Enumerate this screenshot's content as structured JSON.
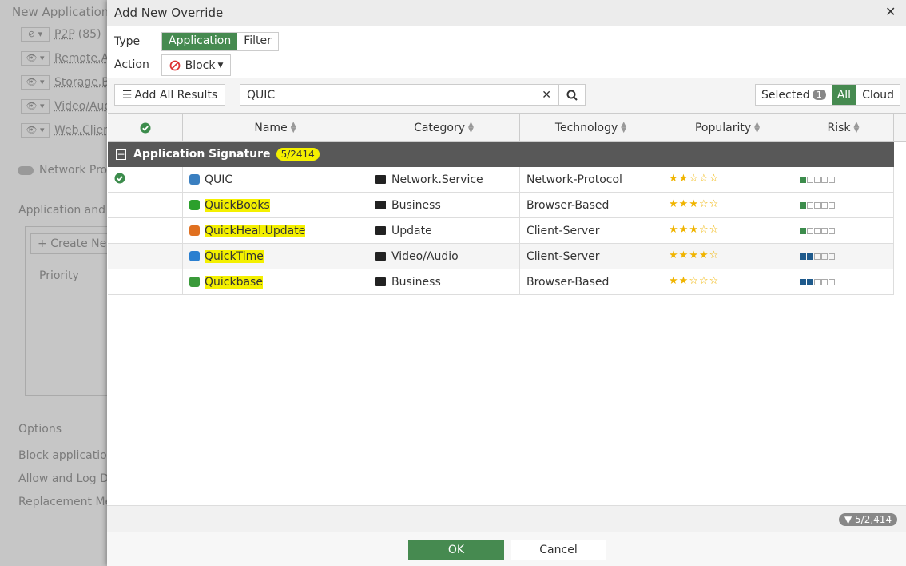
{
  "background": {
    "title": "New Application S",
    "list": [
      "P2P",
      "Remote.A",
      "Storage.B",
      "Video/Aud",
      "Web.Clien"
    ],
    "p2p_count": "(85)",
    "network_toggle": "Network Pro",
    "section": "Application and F",
    "create_button": "Create Ne",
    "priority_header": "Priority",
    "options_title": "Options",
    "options": [
      "Block application",
      "Allow and Log DN",
      "Replacement Me"
    ]
  },
  "dialog": {
    "title": "Add New Override",
    "type_label": "Type",
    "type_options": [
      "Application",
      "Filter"
    ],
    "type_selected": 0,
    "action_label": "Action",
    "action_value": "Block",
    "add_all": "Add All Results",
    "search": "QUIC",
    "view_options": [
      "Selected",
      "All",
      "Cloud"
    ],
    "selected_count": 1,
    "view_selected": 1,
    "columns": [
      "Name",
      "Category",
      "Technology",
      "Popularity",
      "Risk"
    ],
    "group": {
      "name": "Application Signature",
      "count": "5/2414"
    },
    "rows": [
      {
        "name": "QUIC",
        "category": "Network.Service",
        "technology": "Network-Protocol",
        "popularity": 2,
        "risk": 1,
        "selected": true,
        "highlight": false,
        "icon_color": "#3a7fc0"
      },
      {
        "name": "QuickBooks",
        "category": "Business",
        "technology": "Browser-Based",
        "popularity": 3,
        "risk": 1,
        "selected": false,
        "highlight": true,
        "icon_color": "#2ca02c"
      },
      {
        "name": "QuickHeal.Update",
        "category": "Update",
        "technology": "Client-Server",
        "popularity": 3,
        "risk": 1,
        "selected": false,
        "highlight": true,
        "icon_color": "#e07020"
      },
      {
        "name": "QuickTime",
        "category": "Video/Audio",
        "technology": "Client-Server",
        "popularity": 4,
        "risk": 2,
        "selected": false,
        "highlight": true,
        "icon_color": "#2a7fd0"
      },
      {
        "name": "Quickbase",
        "category": "Business",
        "technology": "Browser-Based",
        "popularity": 2,
        "risk": 2,
        "selected": false,
        "highlight": true,
        "icon_color": "#3a9a3a"
      }
    ],
    "footer_count": "5/2,414",
    "ok": "OK",
    "cancel": "Cancel"
  }
}
